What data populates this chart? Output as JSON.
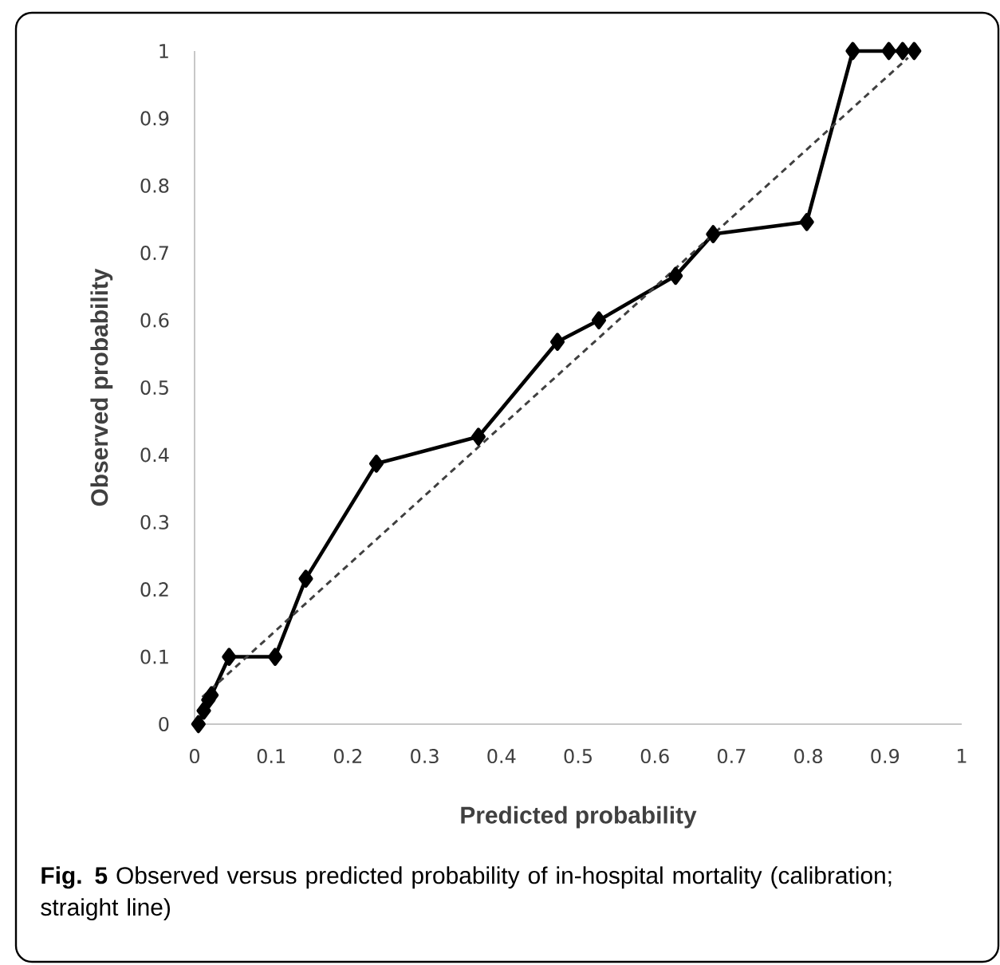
{
  "chart_data": {
    "type": "line",
    "xlabel": "Predicted probability",
    "ylabel": "Observed probability",
    "annotations": [
      "**Fig. 5** Observed versus predicted probability of in-hospital mortality (calibration; straight line)"
    ],
    "xlim": [
      0,
      1
    ],
    "ylim": [
      0,
      1
    ],
    "xticks": [
      0,
      0.1,
      0.2,
      0.3,
      0.4,
      0.5,
      0.6,
      0.7,
      0.8,
      0.9,
      1
    ],
    "yticks": [
      0,
      0.1,
      0.2,
      0.3,
      0.4,
      0.5,
      0.6,
      0.7,
      0.8,
      0.9,
      1
    ],
    "series": [
      {
        "color": "#000000",
        "marker": "diamond",
        "line_style": "solid",
        "x": [
          0.005,
          0.012,
          0.018,
          0.022,
          0.045,
          0.105,
          0.145,
          0.237,
          0.37,
          0.473,
          0.527,
          0.627,
          0.676,
          0.798,
          0.858,
          0.905,
          0.923,
          0.938
        ],
        "values": [
          0.0,
          0.02,
          0.036,
          0.043,
          0.1,
          0.1,
          0.216,
          0.387,
          0.427,
          0.568,
          0.6,
          0.666,
          0.728,
          0.746,
          1.0,
          1.0,
          1.0,
          1.0
        ]
      },
      {
        "color": "#404040",
        "marker": "none",
        "line_style": "dashed",
        "x": [
          0.01,
          0.93
        ],
        "values": [
          0.04,
          0.99
        ]
      }
    ]
  }
}
